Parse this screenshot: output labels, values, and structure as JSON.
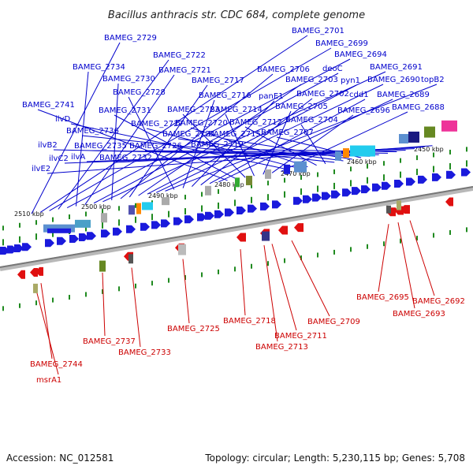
{
  "title": "Bacillus anthracis str. CDC 684, complete genome",
  "footer": {
    "accession": "Accession: NC_012581",
    "topology": "Topology: circular; Length: 5,230,115 bp; Genes: 5,708"
  },
  "colors": {
    "plus_gene": "#1a1adc",
    "minus_gene": "#e01010",
    "plus_label": "#0000cc",
    "minus_label": "#cc0000",
    "backbone": "#9a9a9a",
    "tick": "#1f8a1f"
  },
  "scale_labels": [
    "2450 kbp",
    "2460 kbp",
    "2470 kbp",
    "2480 kbp",
    "2490 kbp",
    "2500 kbp",
    "2510 kbp"
  ],
  "plus_labels": [
    "BAMEG_2729",
    "BAMEG_2701",
    "BAMEG_2699",
    "BAMEG_2722",
    "BAMEG_2694",
    "BAMEG_2734",
    "BAMEG_2721",
    "deoC",
    "BAMEG_2691",
    "BAMEG_2730",
    "BAMEG_2706",
    "BAMEG_2717",
    "BAMEG_2703",
    "pyn1",
    "BAMEG_2690",
    "topB2",
    "BAMEG_2728",
    "BAMEG_2716",
    "panE1",
    "BAMEG_2702",
    "cdd1",
    "BAMEG_2689",
    "BAMEG_2741",
    "BAMEG_2731",
    "BAMEG_2723",
    "BAMEG_2714",
    "BAMEG_2705",
    "BAMEG_2696",
    "BAMEG_2688",
    "ilvD",
    "BAMEG_2727",
    "BAMEG_2720",
    "BAMEG_2712",
    "BAMEG_2704",
    "BAMEG_2736",
    "BAMEG_2724",
    "BAMEG_2715",
    "BAMEG_2707",
    "ilvB2",
    "BAMEG_2735",
    "BAMEG_2726",
    "BAMEG_2719",
    "ilvC2",
    "ilvA",
    "BAMEG_2732",
    "ilvE2"
  ],
  "minus_labels": [
    "BAMEG_2695",
    "BAMEG_2692",
    "BAMEG_2693",
    "BAMEG_2718",
    "BAMEG_2709",
    "BAMEG_2725",
    "BAMEG_2711",
    "BAMEG_2737",
    "BAMEG_2713",
    "BAMEG_2733",
    "BAMEG_2744",
    "msrA1"
  ]
}
